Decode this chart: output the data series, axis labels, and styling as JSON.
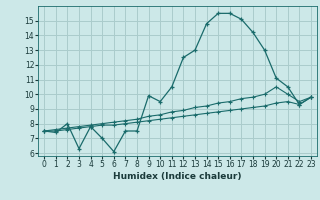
{
  "xlabel": "Humidex (Indice chaleur)",
  "background_color": "#cce8e8",
  "grid_color": "#aacccc",
  "line_color": "#1a6b6b",
  "xlim": [
    -0.5,
    23.5
  ],
  "ylim": [
    5.8,
    16.0
  ],
  "yticks": [
    6,
    7,
    8,
    9,
    10,
    11,
    12,
    13,
    14,
    15
  ],
  "xticks": [
    0,
    1,
    2,
    3,
    4,
    5,
    6,
    7,
    8,
    9,
    10,
    11,
    12,
    13,
    14,
    15,
    16,
    17,
    18,
    19,
    20,
    21,
    22,
    23
  ],
  "series1_x": [
    0,
    1,
    2,
    3,
    4,
    5,
    6,
    7,
    8,
    9,
    10,
    11,
    12,
    13,
    14,
    15,
    16,
    17,
    18,
    19,
    20,
    21,
    22,
    23
  ],
  "series1_y": [
    7.5,
    7.4,
    8.0,
    6.3,
    7.8,
    7.0,
    6.1,
    7.5,
    7.5,
    9.9,
    9.5,
    10.5,
    12.5,
    13.0,
    14.8,
    15.5,
    15.5,
    15.1,
    14.2,
    13.0,
    11.1,
    10.5,
    9.3,
    9.8
  ],
  "series2_x": [
    0,
    1,
    2,
    3,
    4,
    5,
    6,
    7,
    8,
    9,
    10,
    11,
    12,
    13,
    14,
    15,
    16,
    17,
    18,
    19,
    20,
    21,
    22,
    23
  ],
  "series2_y": [
    7.5,
    7.6,
    7.7,
    7.8,
    7.9,
    8.0,
    8.1,
    8.2,
    8.3,
    8.5,
    8.6,
    8.8,
    8.9,
    9.1,
    9.2,
    9.4,
    9.5,
    9.7,
    9.8,
    10.0,
    10.5,
    10.0,
    9.5,
    9.8
  ],
  "series3_x": [
    0,
    1,
    2,
    3,
    4,
    5,
    6,
    7,
    8,
    9,
    10,
    11,
    12,
    13,
    14,
    15,
    16,
    17,
    18,
    19,
    20,
    21,
    22,
    23
  ],
  "series3_y": [
    7.5,
    7.5,
    7.6,
    7.7,
    7.8,
    7.9,
    7.9,
    8.0,
    8.1,
    8.2,
    8.3,
    8.4,
    8.5,
    8.6,
    8.7,
    8.8,
    8.9,
    9.0,
    9.1,
    9.2,
    9.4,
    9.5,
    9.3,
    9.8
  ]
}
